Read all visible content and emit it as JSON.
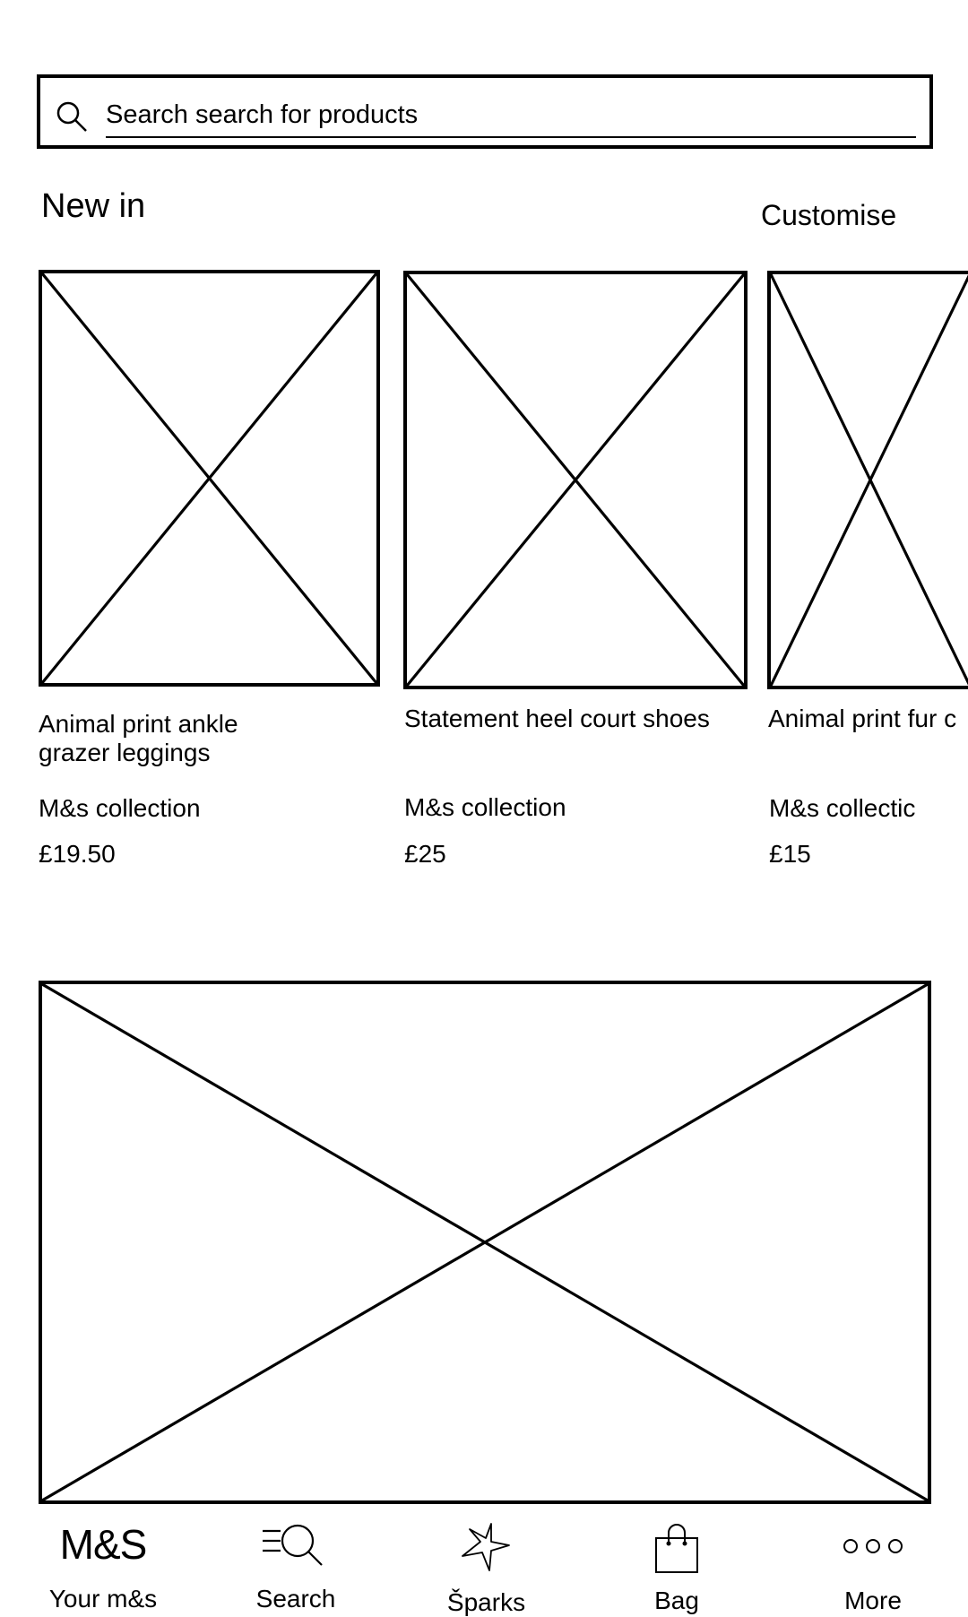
{
  "search": {
    "placeholder": "Search search for products"
  },
  "new_in": {
    "title": "New in",
    "customise_label": "Customise",
    "products": [
      {
        "name_line1": "Animal print ankle",
        "name_line2": "grazer leggings",
        "brand": "M&s collection",
        "price": "£19.50"
      },
      {
        "name_line1": "Statement heel court shoes",
        "brand": "M&s collection",
        "price": "£25"
      },
      {
        "name_line1": "Animal print fur c",
        "brand": "M&s collectic",
        "price": "£15"
      }
    ]
  },
  "bottom_nav": {
    "items": [
      {
        "label": "Your m&s",
        "logo_text": "M&S",
        "icon": "brand-logo"
      },
      {
        "label": "Search",
        "icon": "menu-search-icon"
      },
      {
        "label": "Šparks",
        "icon": "star-icon"
      },
      {
        "label": "Bag",
        "icon": "shopping-bag-icon"
      },
      {
        "label": "More",
        "icon": "more-dots-icon"
      }
    ]
  }
}
